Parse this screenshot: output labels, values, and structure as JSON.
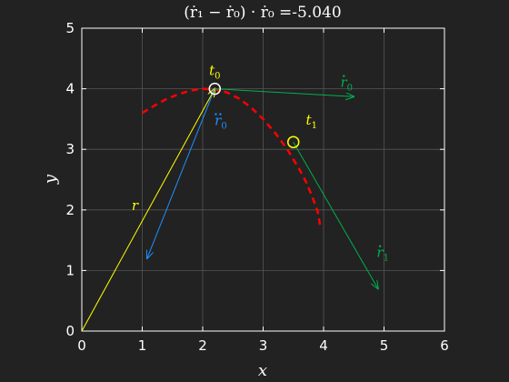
{
  "chart_data": {
    "type": "line",
    "title": "(ṙ₁ − ṙ₀) · ṙ₀ =-5.040",
    "xlabel": "x",
    "ylabel": "y",
    "xlim": [
      0,
      6
    ],
    "ylim": [
      0,
      5
    ],
    "xticks": [
      "0",
      "1",
      "2",
      "3",
      "4",
      "5",
      "6"
    ],
    "yticks": [
      "0",
      "1",
      "2",
      "3",
      "4",
      "5"
    ],
    "grid": true,
    "colors": {
      "background": "#222222",
      "axes": "#ffffff",
      "grid": "#555555",
      "trajectory": "#ff0000",
      "position_vector": "#ffff00",
      "velocity": "#00b050",
      "acceleration": "#1e90ff",
      "marker_t0": "#ffffff",
      "marker_t1": "#ffff00"
    },
    "trajectory": {
      "x": [
        1.0,
        1.2,
        1.4,
        1.6,
        1.8,
        2.0,
        2.2,
        2.4,
        2.6,
        2.8,
        3.0,
        3.2,
        3.4,
        3.6,
        3.7,
        3.8,
        3.9,
        3.95
      ],
      "y": [
        3.6,
        3.72,
        3.83,
        3.91,
        3.97,
        4.0,
        3.99,
        3.94,
        3.84,
        3.69,
        3.5,
        3.27,
        3.0,
        2.67,
        2.48,
        2.25,
        1.98,
        1.7
      ],
      "style": "dashed"
    },
    "points": [
      {
        "label": "t",
        "sub": "0",
        "x": 2.2,
        "y": 4.0
      },
      {
        "label": "t",
        "sub": "1",
        "x": 3.5,
        "y": 3.12
      }
    ],
    "vectors": [
      {
        "label": "r",
        "sub": "",
        "dot": "",
        "from": [
          0,
          0
        ],
        "to": [
          2.2,
          4.0
        ],
        "color_key": "position_vector"
      },
      {
        "label": "r",
        "sub": "0",
        "dot": "single",
        "from": [
          2.2,
          4.0
        ],
        "to": [
          4.5,
          3.87
        ],
        "color_key": "velocity"
      },
      {
        "label": "r",
        "sub": "0",
        "dot": "double",
        "from": [
          2.2,
          4.0
        ],
        "to": [
          1.08,
          1.2
        ],
        "color_key": "acceleration"
      },
      {
        "label": "r",
        "sub": "1",
        "dot": "single",
        "from": [
          3.5,
          3.12
        ],
        "to": [
          4.9,
          0.7
        ],
        "color_key": "velocity"
      }
    ]
  }
}
